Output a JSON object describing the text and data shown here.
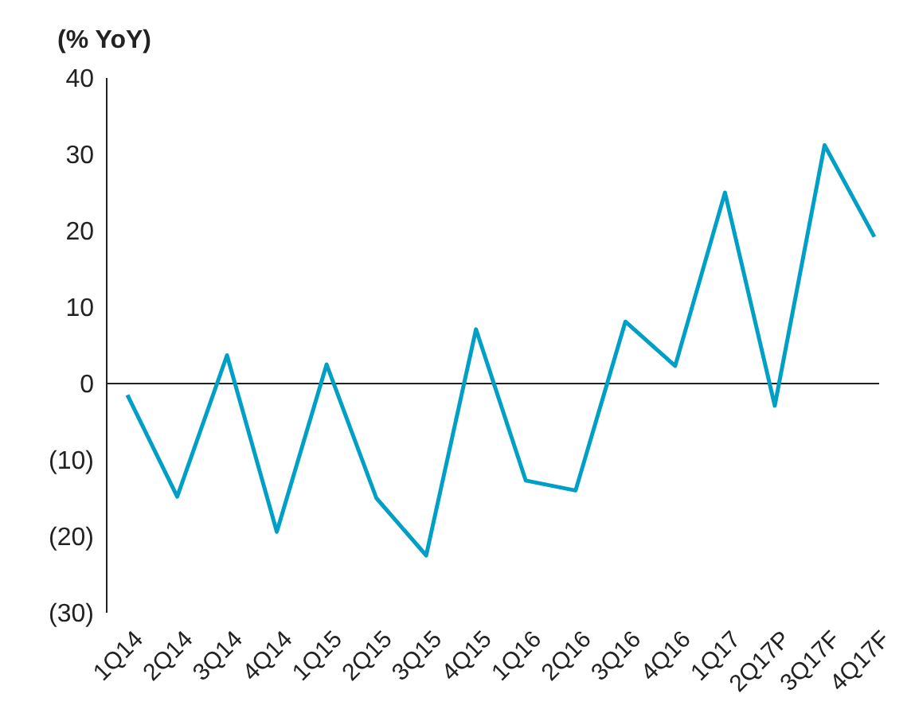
{
  "chart_data": {
    "type": "line",
    "ylabel": "(% YoY)",
    "categories": [
      "1Q14",
      "2Q14",
      "3Q14",
      "4Q14",
      "1Q15",
      "2Q15",
      "3Q15",
      "4Q15",
      "1Q16",
      "2Q16",
      "3Q16",
      "4Q16",
      "1Q17",
      "2Q17P",
      "3Q17F",
      "4Q17F"
    ],
    "series": [
      {
        "color": "#00a0c6",
        "values": [
          -1.5,
          -14.8,
          3.7,
          -19.4,
          2.5,
          -15,
          -22.5,
          7.1,
          -12.7,
          -14,
          8.1,
          2.3,
          25,
          -2.9,
          31.2,
          19.2
        ]
      }
    ],
    "ylim": [
      -30,
      40
    ],
    "yticks": [
      {
        "value": -30,
        "label": "(30)"
      },
      {
        "value": -20,
        "label": "(20)"
      },
      {
        "value": -10,
        "label": "(10)"
      },
      0,
      10,
      20,
      30,
      40
    ],
    "legend": false,
    "marker": "none",
    "line_style": "solid"
  }
}
